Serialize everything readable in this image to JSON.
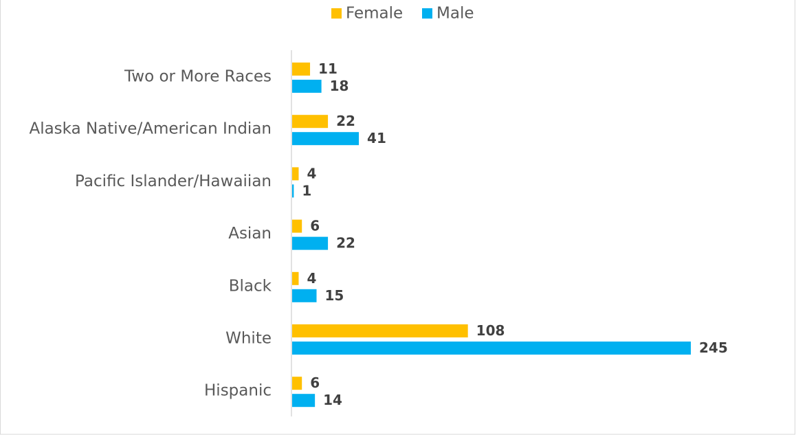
{
  "chart_data": {
    "type": "hbar",
    "categories": [
      "Two or More Races",
      "Alaska Native/American Indian",
      "Pacific Islander/Hawaiian",
      "Asian",
      "Black",
      "White",
      "Hispanic"
    ],
    "series": [
      {
        "name": "Female",
        "color": "#FFC000",
        "values": [
          11,
          22,
          4,
          6,
          4,
          108,
          6
        ]
      },
      {
        "name": "Male",
        "color": "#00B0F0",
        "values": [
          18,
          41,
          1,
          22,
          15,
          245,
          14
        ]
      }
    ],
    "legend": "top"
  }
}
